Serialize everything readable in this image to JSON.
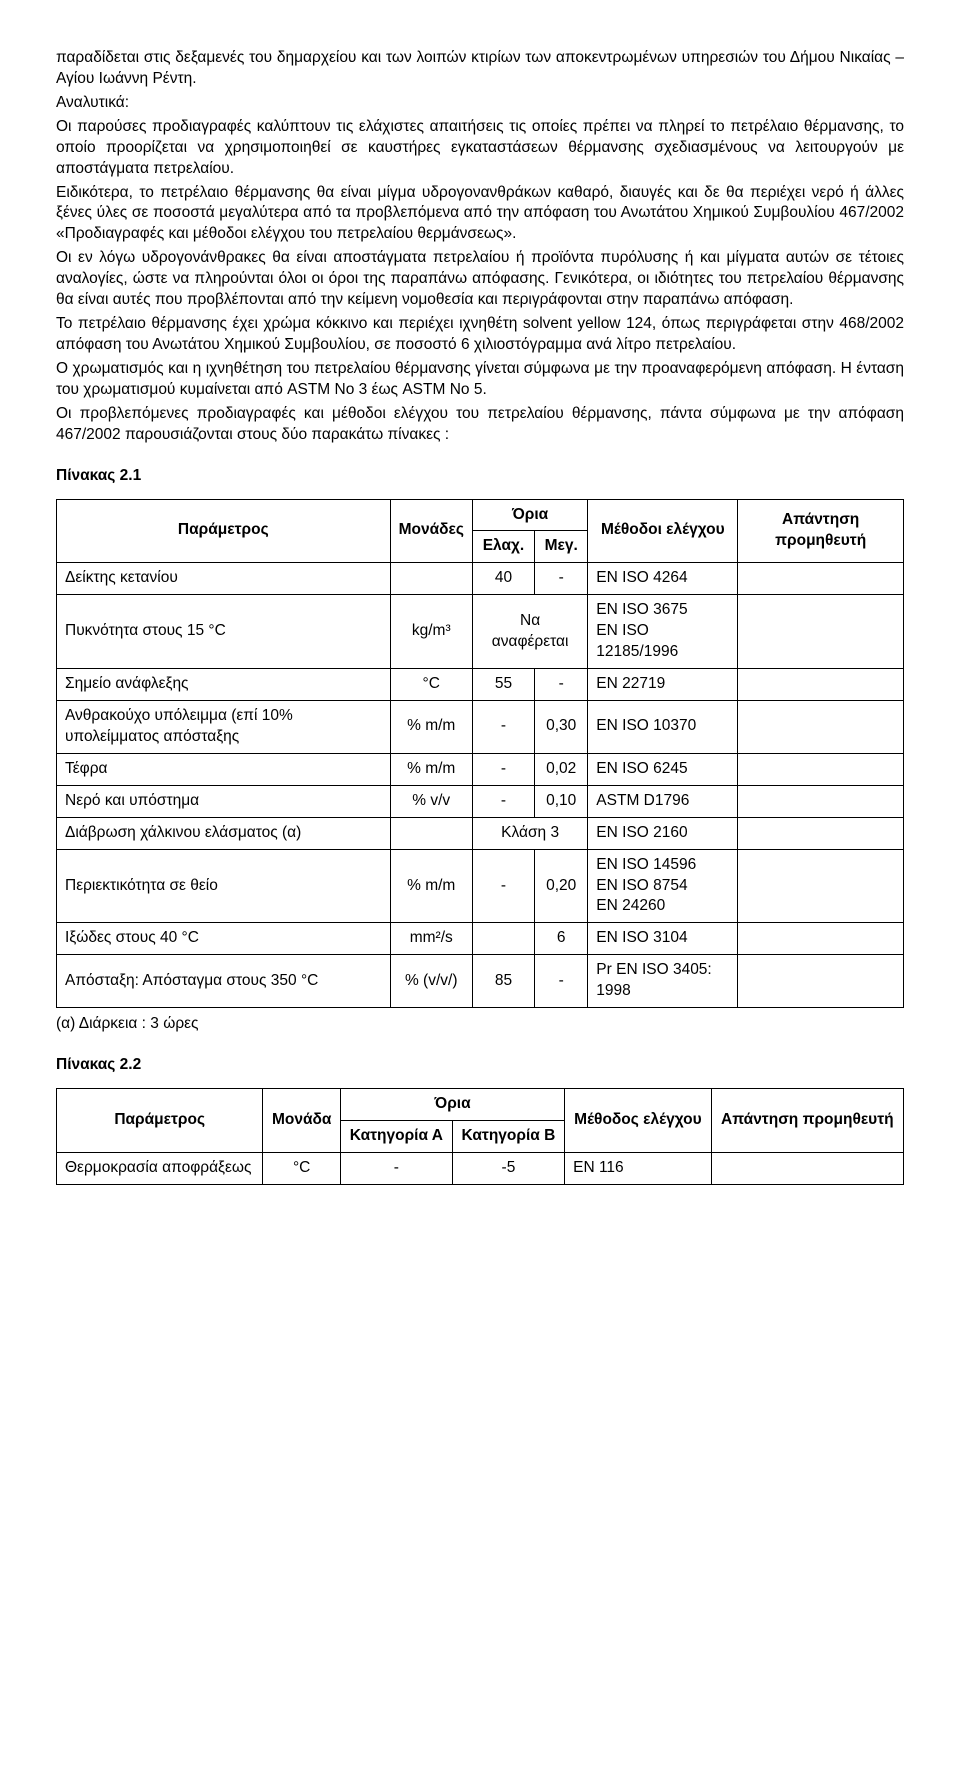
{
  "paragraphs": {
    "p1": "παραδίδεται στις δεξαμενές του δημαρχείου και των λοιπών κτιρίων των αποκεντρωμένων υπηρεσιών του Δήμου Νικαίας – Αγίου Ιωάννη Ρέντη.",
    "p2": "Αναλυτικά:",
    "p3": "Οι παρούσες προδιαγραφές καλύπτουν τις ελάχιστες απαιτήσεις τις οποίες πρέπει να πληρεί το πετρέλαιο θέρμανσης, το οποίο προορίζεται να χρησιμοποιηθεί σε καυστήρες εγκαταστάσεων θέρμανσης σχεδιασμένους να λειτουργούν με αποστάγματα πετρελαίου.",
    "p4": "Ειδικότερα, το πετρέλαιο θέρμανσης θα είναι μίγμα υδρογονανθράκων καθαρό, διαυγές και δε θα περιέχει νερό ή άλλες ξένες ύλες σε ποσοστά μεγαλύτερα από τα προβλεπόμενα από την απόφαση του Ανωτάτου Χημικού Συμβουλίου 467/2002 «Προδιαγραφές και μέθοδοι ελέγχου του πετρελαίου θερμάνσεως».",
    "p5": "Οι εν λόγω υδρογονάνθρακες θα είναι αποστάγματα πετρελαίου ή προϊόντα πυρόλυσης ή και μίγματα αυτών σε τέτοιες αναλογίες, ώστε να πληρούνται όλοι οι όροι της παραπάνω απόφασης. Γενικότερα, οι ιδιότητες του πετρελαίου θέρμανσης θα είναι αυτές που προβλέπονται από την κείμενη νομοθεσία και περιγράφονται στην παραπάνω απόφαση.",
    "p6": "Το πετρέλαιο θέρμανσης έχει χρώμα κόκκινο και περιέχει ιχνηθέτη solvent yellow 124, όπως περιγράφεται στην 468/2002 απόφαση του Ανωτάτου Χημικού Συμβουλίου, σε ποσοστό 6 χιλιοστόγραμμα ανά λίτρο πετρελαίου.",
    "p7": "Ο χρωματισμός και η ιχνηθέτηση του πετρελαίου θέρμανσης γίνεται σύμφωνα με την προαναφερόμενη απόφαση. Η ένταση του χρωματισμού κυμαίνεται από ASTM No 3 έως ASTM No 5.",
    "p8": "Οι προβλεπόμενες προδιαγραφές και μέθοδοι ελέγχου του πετρελαίου θέρμανσης, πάντα σύμφωνα με την απόφαση 467/2002 παρουσιάζονται στους δύο παρακάτω πίνακες :"
  },
  "table1": {
    "heading": "Πίνακας 2.1",
    "headers": {
      "param": "Παράμετρος",
      "units": "Μονάδες",
      "limits": "Όρια",
      "min": "Ελαχ.",
      "max": "Μεγ.",
      "methods": "Μέθοδοι ελέγχου",
      "supplier": "Απάντηση προμηθευτή"
    },
    "rows": {
      "r1": {
        "param": "Δείκτης κετανίου",
        "units": "",
        "min": "40",
        "max": "-",
        "methods": "EN ISO 4264",
        "supplier": ""
      },
      "r2": {
        "param": "Πυκνότητα στους 15 °C",
        "units": "kg/m³",
        "minmax": "Να αναφέρεται",
        "methods": "EN ISO 3675\nEN ISO 12185/1996",
        "supplier": ""
      },
      "r3": {
        "param": "Σημείο ανάφλεξης",
        "units": "°C",
        "min": "55",
        "max": "-",
        "methods": "EN 22719",
        "supplier": ""
      },
      "r4": {
        "param": "Ανθρακούχο υπόλειμμα (επί 10% υπολείμματος απόσταξης",
        "units": "% m/m",
        "min": "-",
        "max": "0,30",
        "methods": "EN ISO 10370",
        "supplier": ""
      },
      "r5": {
        "param": "Τέφρα",
        "units": "% m/m",
        "min": "-",
        "max": "0,02",
        "methods": "EN ISO 6245",
        "supplier": ""
      },
      "r6": {
        "param": "Νερό και υπόστημα",
        "units": "% v/v",
        "min": "-",
        "max": "0,10",
        "methods": "ASTM D1796",
        "supplier": ""
      },
      "r7": {
        "param": "Διάβρωση χάλκινου ελάσματος (α)",
        "units": "",
        "minmax": "Κλάση 3",
        "methods": "EN ISO 2160",
        "supplier": ""
      },
      "r8": {
        "param": "Περιεκτικότητα σε θείο",
        "units": "% m/m",
        "min": "-",
        "max": "0,20",
        "methods": "EN ISO 14596\nEN ISO 8754\nEN 24260",
        "supplier": ""
      },
      "r9": {
        "param": "Ιξώδες στους 40 °C",
        "units": "mm²/s",
        "min": "",
        "max": "6",
        "methods": "EN ISO 3104",
        "supplier": ""
      },
      "r10": {
        "param": "Απόσταξη: Απόσταγμα στους 350 °C",
        "units": "% (v/v/)",
        "min": "85",
        "max": "-",
        "methods": "Pr EN ISO 3405: 1998",
        "supplier": ""
      }
    },
    "note": "(α) Διάρκεια : 3 ώρες"
  },
  "table2": {
    "heading": "Πίνακας 2.2",
    "headers": {
      "param": "Παράμετρος",
      "units": "Μονάδα",
      "limits": "Όρια",
      "catA": "Κατηγορία Α",
      "catB": "Κατηγορία Β",
      "methods": "Μέθοδος ελέγχου",
      "supplier": "Απάντηση προμηθευτή"
    },
    "rows": {
      "r1": {
        "param": "Θερμοκρασία αποφράξεως",
        "units": "°C",
        "catA": "-",
        "catB": "-5",
        "methods": "EN 116",
        "supplier": ""
      }
    }
  }
}
